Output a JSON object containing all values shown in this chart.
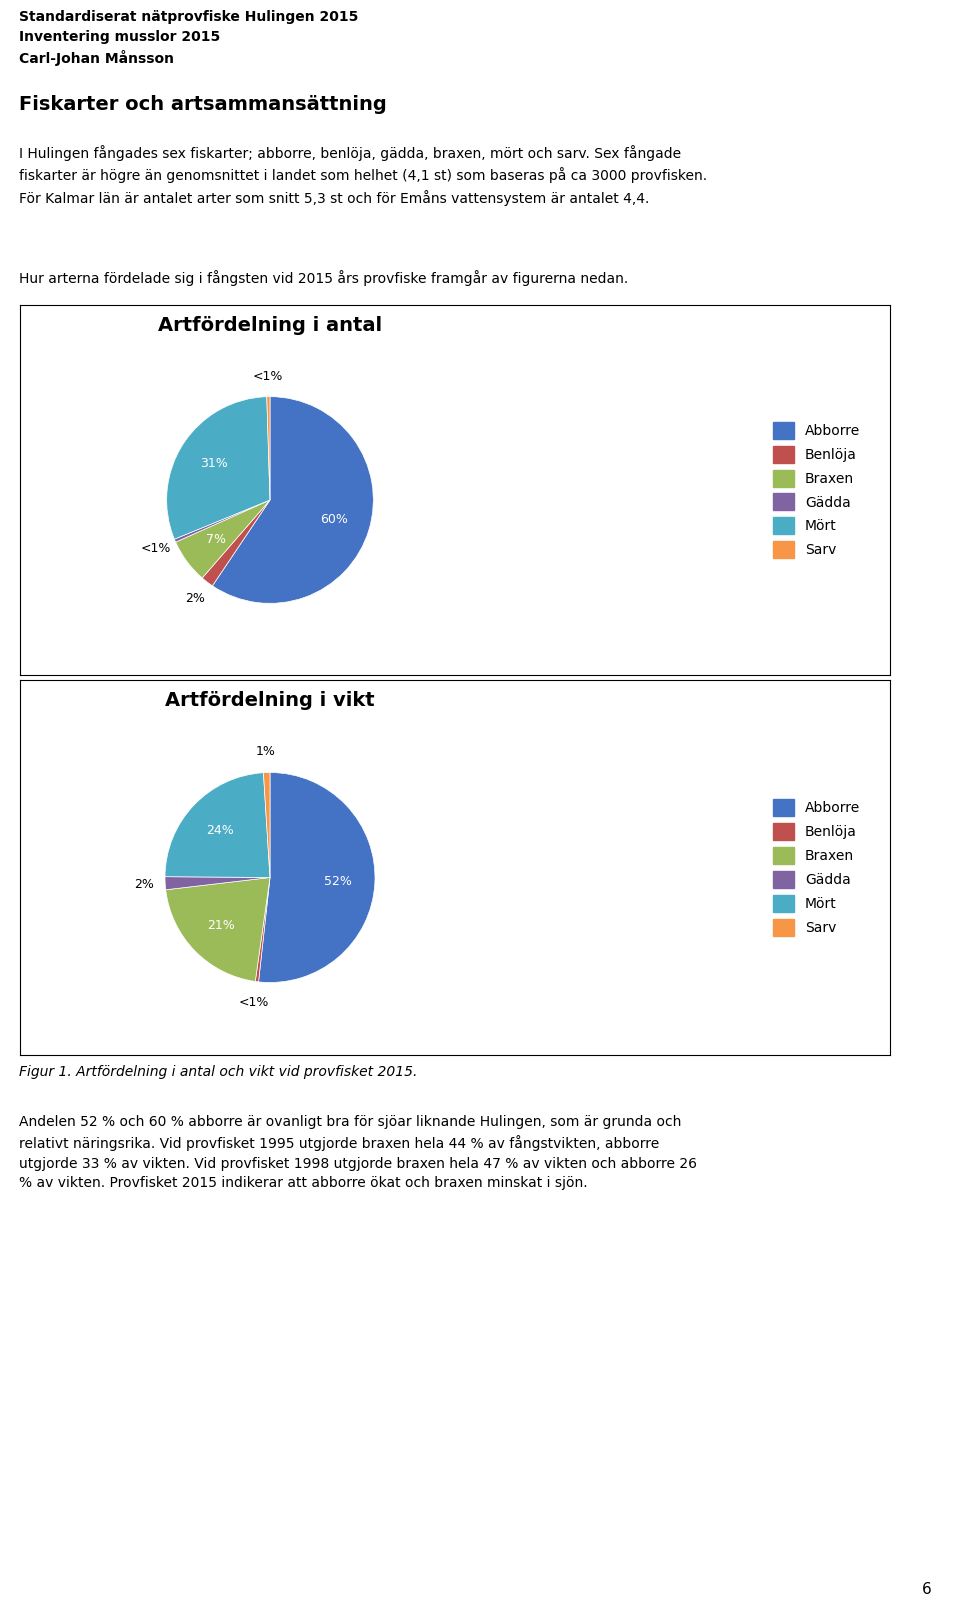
{
  "header_lines": [
    "Standardiserat nätprovfiske Hulingen 2015",
    "Inventering musslor 2015",
    "Carl-Johan Månsson"
  ],
  "section_title": "Fiskarter och artsammansättning",
  "paragraph1": "I Hulingen fångades sex fiskarter; abborre, benlöja, gädda, braxen, mört och sarv. Sex fångade\nfiskarter är högre än genomsnittet i landet som helhet (4,1 st) som baseras på ca 3000 provfisken.\nFör Kalmar län är antalet arter som snitt 5,3 st och för Emåns vattensystem är antalet 4,4.",
  "paragraph2": "Hur arterna fördelade sig i fångsten vid 2015 års provfiske framgår av figurerna nedan.",
  "chart1_title": "Artfördelning i antal",
  "chart1_labels": [
    "Abborre",
    "Benlöja",
    "Braxen",
    "Gädda",
    "Mört",
    "Sarv"
  ],
  "chart1_values": [
    60,
    2,
    7,
    0.5,
    31,
    0.5
  ],
  "chart1_display_labels": [
    "60%",
    "2%",
    "7%",
    "<1%",
    "31%",
    "<1%"
  ],
  "chart1_colors": [
    "#4472C4",
    "#C0504D",
    "#9BBB59",
    "#8064A2",
    "#4BACC6",
    "#F79646"
  ],
  "chart2_title": "Artfördelning i vikt",
  "chart2_labels": [
    "Abborre",
    "Benlöja",
    "Braxen",
    "Gädda",
    "Mört",
    "Sarv"
  ],
  "chart2_values": [
    52,
    0.5,
    21,
    2,
    24,
    1
  ],
  "chart2_display_labels": [
    "52%",
    "<1%",
    "21%",
    "2%",
    "24%",
    "1%"
  ],
  "chart2_colors": [
    "#4472C4",
    "#C0504D",
    "#9BBB59",
    "#8064A2",
    "#4BACC6",
    "#F79646"
  ],
  "figure_caption": "Figur 1. Artfördelning i antal och vikt vid provfisket 2015.",
  "paragraph3": "Andelen 52 % och 60 % abborre är ovanligt bra för sjöar liknande Hulingen, som är grunda och\nrelativt näringsrika. Vid provfisket 1995 utgjorde braxen hela 44 % av fångstvikten, abborre\nutgjorde 33 % av vikten. Vid provfisket 1998 utgjorde braxen hela 47 % av vikten och abborre 26\n% av vikten. Provfisket 2015 indikerar att abborre ökat och braxen minskat i sjön.",
  "page_number": "6",
  "bg_color": "#FFFFFF"
}
